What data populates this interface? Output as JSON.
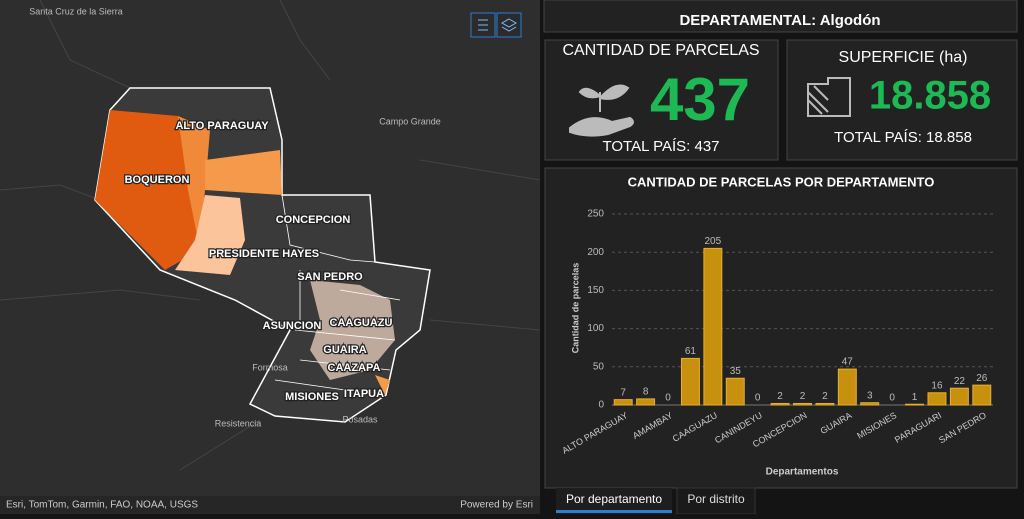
{
  "header": {
    "title": "DEPARTAMENTAL: Algodón"
  },
  "kpis": [
    {
      "title": "CANTIDAD DE PARCELAS",
      "value": "437",
      "total": "TOTAL PAÍS: 437"
    },
    {
      "title": "SUPERFICIE (ha)",
      "value": "18.858",
      "total": "TOTAL PAÍS: 18.858"
    }
  ],
  "map": {
    "labels": [
      "Santa Cruz de la Sierra",
      "Campo Grande",
      "ALTO PARAGUAY",
      "BOQUERON",
      "CONCEPCION",
      "PRESIDENTE HAYES",
      "SAN PEDRO",
      "ASUNCION",
      "CAAGUAZU",
      "GUAIRA",
      "CAAZAPA",
      "MISIONES",
      "ITAPUA",
      "Formosa",
      "Resistencia",
      "Posadas"
    ],
    "attribution": "Esri, TomTom, Garmin, FAO, NOAA, USGS",
    "powered": "Powered by Esri"
  },
  "chart_data": {
    "type": "bar",
    "title": "CANTIDAD DE PARCELAS POR DEPARTAMENTO",
    "xlabel": "Departamentos",
    "ylabel": "Cantidad de parcelas",
    "categories": [
      "ALTO PARAGUAY",
      null,
      "AMAMBAY",
      null,
      "CAAGUAZU",
      null,
      "CANINDEYU",
      null,
      "CONCEPCION",
      null,
      "GUAIRA",
      null,
      "MISIONES",
      null,
      "PARAGUARI",
      null,
      "SAN PEDRO"
    ],
    "values": [
      7,
      8,
      0,
      61,
      205,
      35,
      0,
      2,
      2,
      2,
      47,
      3,
      0,
      1,
      16,
      22,
      26
    ],
    "color": "#c8900f",
    "ylim": [
      0,
      250
    ],
    "yticks": [
      0,
      50,
      100,
      150,
      200,
      250
    ],
    "grid": true
  },
  "tabs": [
    "Por departamento",
    "Por distrito"
  ]
}
